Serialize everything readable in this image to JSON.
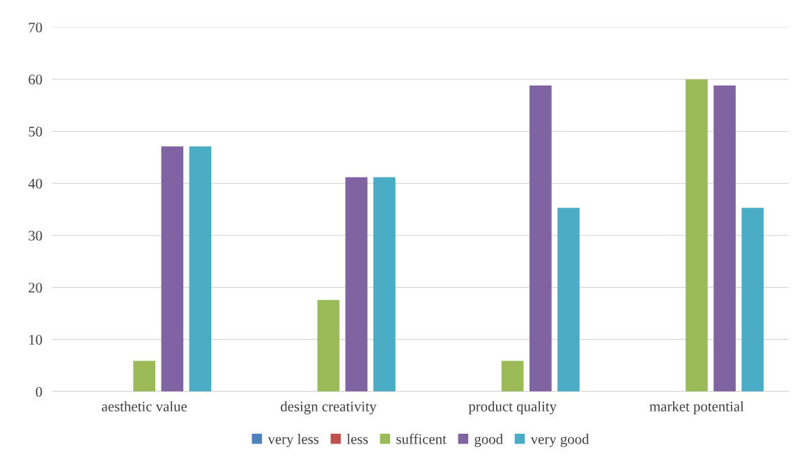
{
  "chart_data": {
    "type": "bar",
    "categories": [
      "aesthetic value",
      "design creativity",
      "product quality",
      "market potential"
    ],
    "series": [
      {
        "name": "very less",
        "color": "#4f81bd",
        "values": [
          0,
          0,
          0,
          0
        ]
      },
      {
        "name": "less",
        "color": "#c0504d",
        "values": [
          0,
          0,
          0,
          0
        ]
      },
      {
        "name": "sufficent",
        "color": "#9bbb59",
        "values": [
          5.9,
          17.6,
          5.9,
          60
        ]
      },
      {
        "name": "good",
        "color": "#8064a2",
        "values": [
          47.1,
          41.2,
          58.8,
          58.8
        ]
      },
      {
        "name": "very good",
        "color": "#4bacc6",
        "values": [
          47.1,
          41.2,
          35.3,
          35.3
        ]
      }
    ],
    "ylim": [
      0,
      70
    ],
    "yticks": [
      0,
      10,
      20,
      30,
      40,
      50,
      60,
      70
    ],
    "grid": "y",
    "legend": "bottom"
  }
}
